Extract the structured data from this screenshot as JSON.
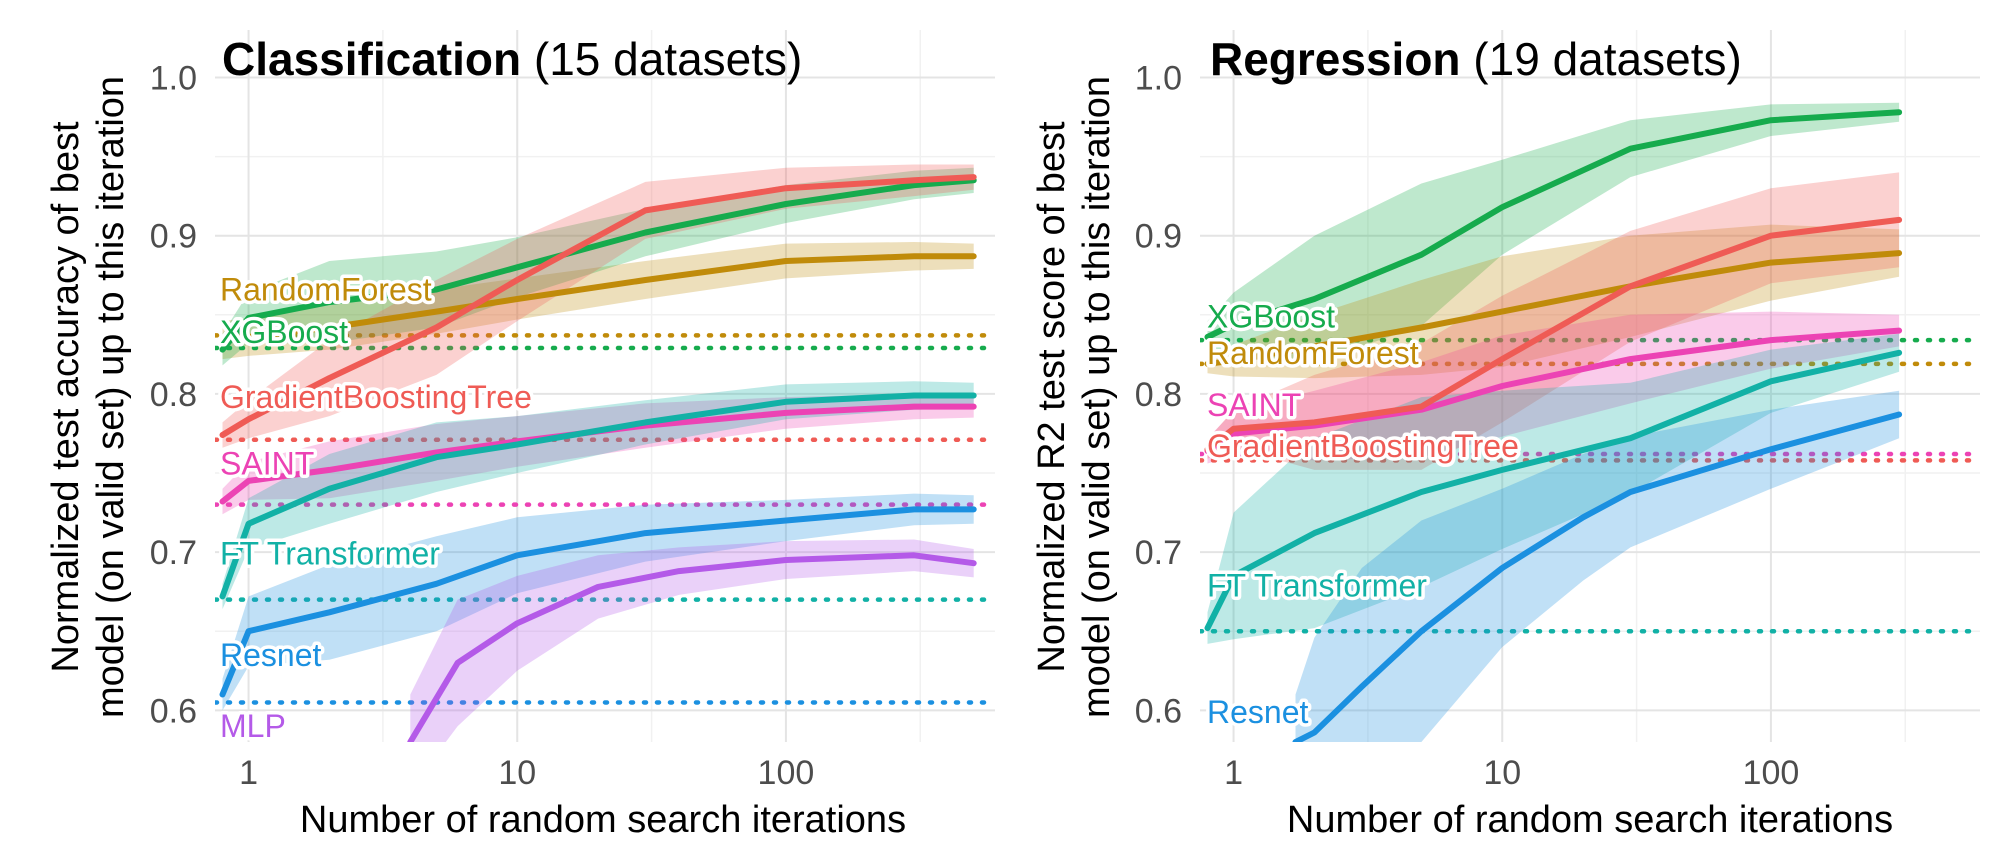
{
  "figure": {
    "colors": {
      "RandomForest": "#c08b0a",
      "XGBoost": "#16ab4d",
      "GradientBoostingTree": "#ef5b55",
      "SAINT": "#ec43b4",
      "FT Transformer": "#12b1a6",
      "Resnet": "#1b90e0",
      "MLP": "#b45ae8"
    }
  },
  "chart_data": [
    {
      "type": "line",
      "title_bold": "Classification",
      "title_rest": " (15 datasets)",
      "xlabel": "Number of random search iterations",
      "ylabel_line1": "Normalized test accuracy of best",
      "ylabel_line2": "model (on valid set) up to this iteration",
      "x_scale": "log10",
      "xlim": [
        0.75,
        600
      ],
      "ylim": [
        0.58,
        1.03
      ],
      "x_ticks": [
        1,
        10,
        100
      ],
      "x_tick_labels": [
        "1",
        "10",
        "100"
      ],
      "y_ticks": [
        0.6,
        0.7,
        0.8,
        0.9,
        1.0
      ],
      "y_tick_labels": [
        "0.6",
        "0.7",
        "0.8",
        "0.9",
        "1.0"
      ],
      "grid": true,
      "series": [
        {
          "name": "RandomForest",
          "baseline": 0.837,
          "label_y": 0.866,
          "x": [
            0.8,
            1,
            2,
            5,
            10,
            30,
            100,
            300,
            500
          ],
          "y": [
            0.834,
            0.836,
            0.842,
            0.852,
            0.86,
            0.872,
            0.884,
            0.887,
            0.887
          ],
          "band": [
            0.012,
            0.012,
            0.014,
            0.014,
            0.013,
            0.012,
            0.011,
            0.009,
            0.008
          ]
        },
        {
          "name": "XGBoost",
          "baseline": 0.829,
          "label_y": 0.839,
          "x": [
            0.8,
            1,
            2,
            5,
            10,
            30,
            100,
            300,
            500
          ],
          "y": [
            0.828,
            0.848,
            0.858,
            0.866,
            0.88,
            0.902,
            0.92,
            0.932,
            0.935
          ],
          "band": [
            0.01,
            0.016,
            0.026,
            0.024,
            0.019,
            0.015,
            0.012,
            0.009,
            0.008
          ]
        },
        {
          "name": "GradientBoostingTree",
          "baseline": 0.771,
          "label_y": 0.798,
          "x": [
            0.8,
            1,
            2,
            5,
            10,
            30,
            100,
            300,
            500
          ],
          "y": [
            0.774,
            0.784,
            0.81,
            0.842,
            0.872,
            0.916,
            0.93,
            0.935,
            0.937
          ],
          "band": [
            0.008,
            0.012,
            0.024,
            0.03,
            0.026,
            0.018,
            0.013,
            0.01,
            0.008
          ]
        },
        {
          "name": "SAINT",
          "baseline": 0.73,
          "label_y": 0.756,
          "x": [
            0.8,
            1,
            2,
            5,
            10,
            30,
            100,
            300,
            500
          ],
          "y": [
            0.732,
            0.745,
            0.752,
            0.763,
            0.77,
            0.78,
            0.788,
            0.792,
            0.792
          ],
          "band": [
            0.008,
            0.012,
            0.018,
            0.018,
            0.016,
            0.014,
            0.01,
            0.008,
            0.007
          ]
        },
        {
          "name": "FT Transformer",
          "baseline": 0.67,
          "label_y": 0.699,
          "x": [
            0.8,
            1,
            2,
            5,
            10,
            30,
            100,
            300,
            500
          ],
          "y": [
            0.672,
            0.718,
            0.74,
            0.76,
            0.768,
            0.782,
            0.795,
            0.799,
            0.799
          ],
          "band": [
            0.008,
            0.016,
            0.022,
            0.022,
            0.018,
            0.014,
            0.011,
            0.009,
            0.008
          ]
        },
        {
          "name": "Resnet",
          "baseline": 0.605,
          "label_y": 0.635,
          "x": [
            0.8,
            1,
            2,
            5,
            10,
            30,
            100,
            300,
            500
          ],
          "y": [
            0.61,
            0.65,
            0.662,
            0.68,
            0.698,
            0.712,
            0.72,
            0.727,
            0.727
          ],
          "band": [
            0.01,
            0.022,
            0.03,
            0.03,
            0.024,
            0.018,
            0.013,
            0.01,
            0.009
          ]
        },
        {
          "name": "MLP",
          "baseline": null,
          "label_y": 0.59,
          "x": [
            4.0,
            6,
            10,
            20,
            40,
            100,
            300,
            500
          ],
          "y": [
            0.58,
            0.63,
            0.655,
            0.678,
            0.688,
            0.695,
            0.698,
            0.693
          ],
          "band": [
            0.03,
            0.04,
            0.03,
            0.02,
            0.015,
            0.012,
            0.01,
            0.009
          ]
        }
      ]
    },
    {
      "type": "line",
      "title_bold": "Regression",
      "title_rest": " (19 datasets)",
      "xlabel": "Number of random search iterations",
      "ylabel_line1": "Normalized R2 test score of best",
      "ylabel_line2": "model (on valid set) up to this iteration",
      "x_scale": "log10",
      "xlim": [
        0.75,
        600
      ],
      "ylim": [
        0.58,
        1.03
      ],
      "x_ticks": [
        1,
        10,
        100
      ],
      "x_tick_labels": [
        "1",
        "10",
        "100"
      ],
      "y_ticks": [
        0.6,
        0.7,
        0.8,
        0.9,
        1.0
      ],
      "y_tick_labels": [
        "0.6",
        "0.7",
        "0.8",
        "0.9",
        "1.0"
      ],
      "grid": true,
      "series": [
        {
          "name": "XGBoost",
          "baseline": 0.834,
          "label_y": 0.849,
          "x": [
            0.8,
            1,
            2,
            5,
            10,
            30,
            100,
            300
          ],
          "y": [
            0.836,
            0.844,
            0.86,
            0.888,
            0.918,
            0.955,
            0.973,
            0.978
          ],
          "band": [
            0.01,
            0.02,
            0.04,
            0.045,
            0.03,
            0.018,
            0.01,
            0.006
          ]
        },
        {
          "name": "RandomForest",
          "baseline": 0.819,
          "label_y": 0.826,
          "x": [
            0.8,
            1,
            2,
            5,
            10,
            30,
            100,
            300
          ],
          "y": [
            0.819,
            0.821,
            0.83,
            0.842,
            0.852,
            0.868,
            0.883,
            0.889
          ],
          "band": [
            0.006,
            0.01,
            0.02,
            0.03,
            0.035,
            0.032,
            0.024,
            0.015
          ]
        },
        {
          "name": "SAINT",
          "baseline": 0.762,
          "label_y": 0.793,
          "x": [
            0.8,
            1,
            2,
            5,
            10,
            30,
            100,
            300
          ],
          "y": [
            0.764,
            0.775,
            0.78,
            0.79,
            0.805,
            0.822,
            0.834,
            0.84
          ],
          "band": [
            0.008,
            0.014,
            0.022,
            0.03,
            0.032,
            0.028,
            0.018,
            0.01
          ]
        },
        {
          "name": "GradientBoostingTree",
          "baseline": 0.758,
          "label_y": 0.767,
          "x": [
            0.8,
            1,
            2,
            5,
            10,
            30,
            100,
            300
          ],
          "y": [
            0.765,
            0.778,
            0.782,
            0.792,
            0.822,
            0.868,
            0.9,
            0.91
          ],
          "band": [
            0.006,
            0.012,
            0.03,
            0.04,
            0.04,
            0.035,
            0.03,
            0.03
          ]
        },
        {
          "name": "FT Transformer",
          "baseline": 0.65,
          "label_y": 0.679,
          "x": [
            0.8,
            1,
            2,
            5,
            10,
            30,
            100,
            300
          ],
          "y": [
            0.652,
            0.685,
            0.712,
            0.738,
            0.752,
            0.772,
            0.808,
            0.826
          ],
          "band": [
            0.01,
            0.04,
            0.06,
            0.06,
            0.05,
            0.035,
            0.02,
            0.012
          ]
        },
        {
          "name": "Resnet",
          "baseline": null,
          "label_y": 0.599,
          "x": [
            1.7,
            2,
            3,
            5,
            10,
            20,
            30,
            100,
            300
          ],
          "y": [
            0.58,
            0.586,
            0.615,
            0.65,
            0.69,
            0.722,
            0.738,
            0.765,
            0.787
          ],
          "band": [
            0.03,
            0.06,
            0.075,
            0.07,
            0.05,
            0.04,
            0.035,
            0.025,
            0.015
          ]
        }
      ]
    }
  ]
}
